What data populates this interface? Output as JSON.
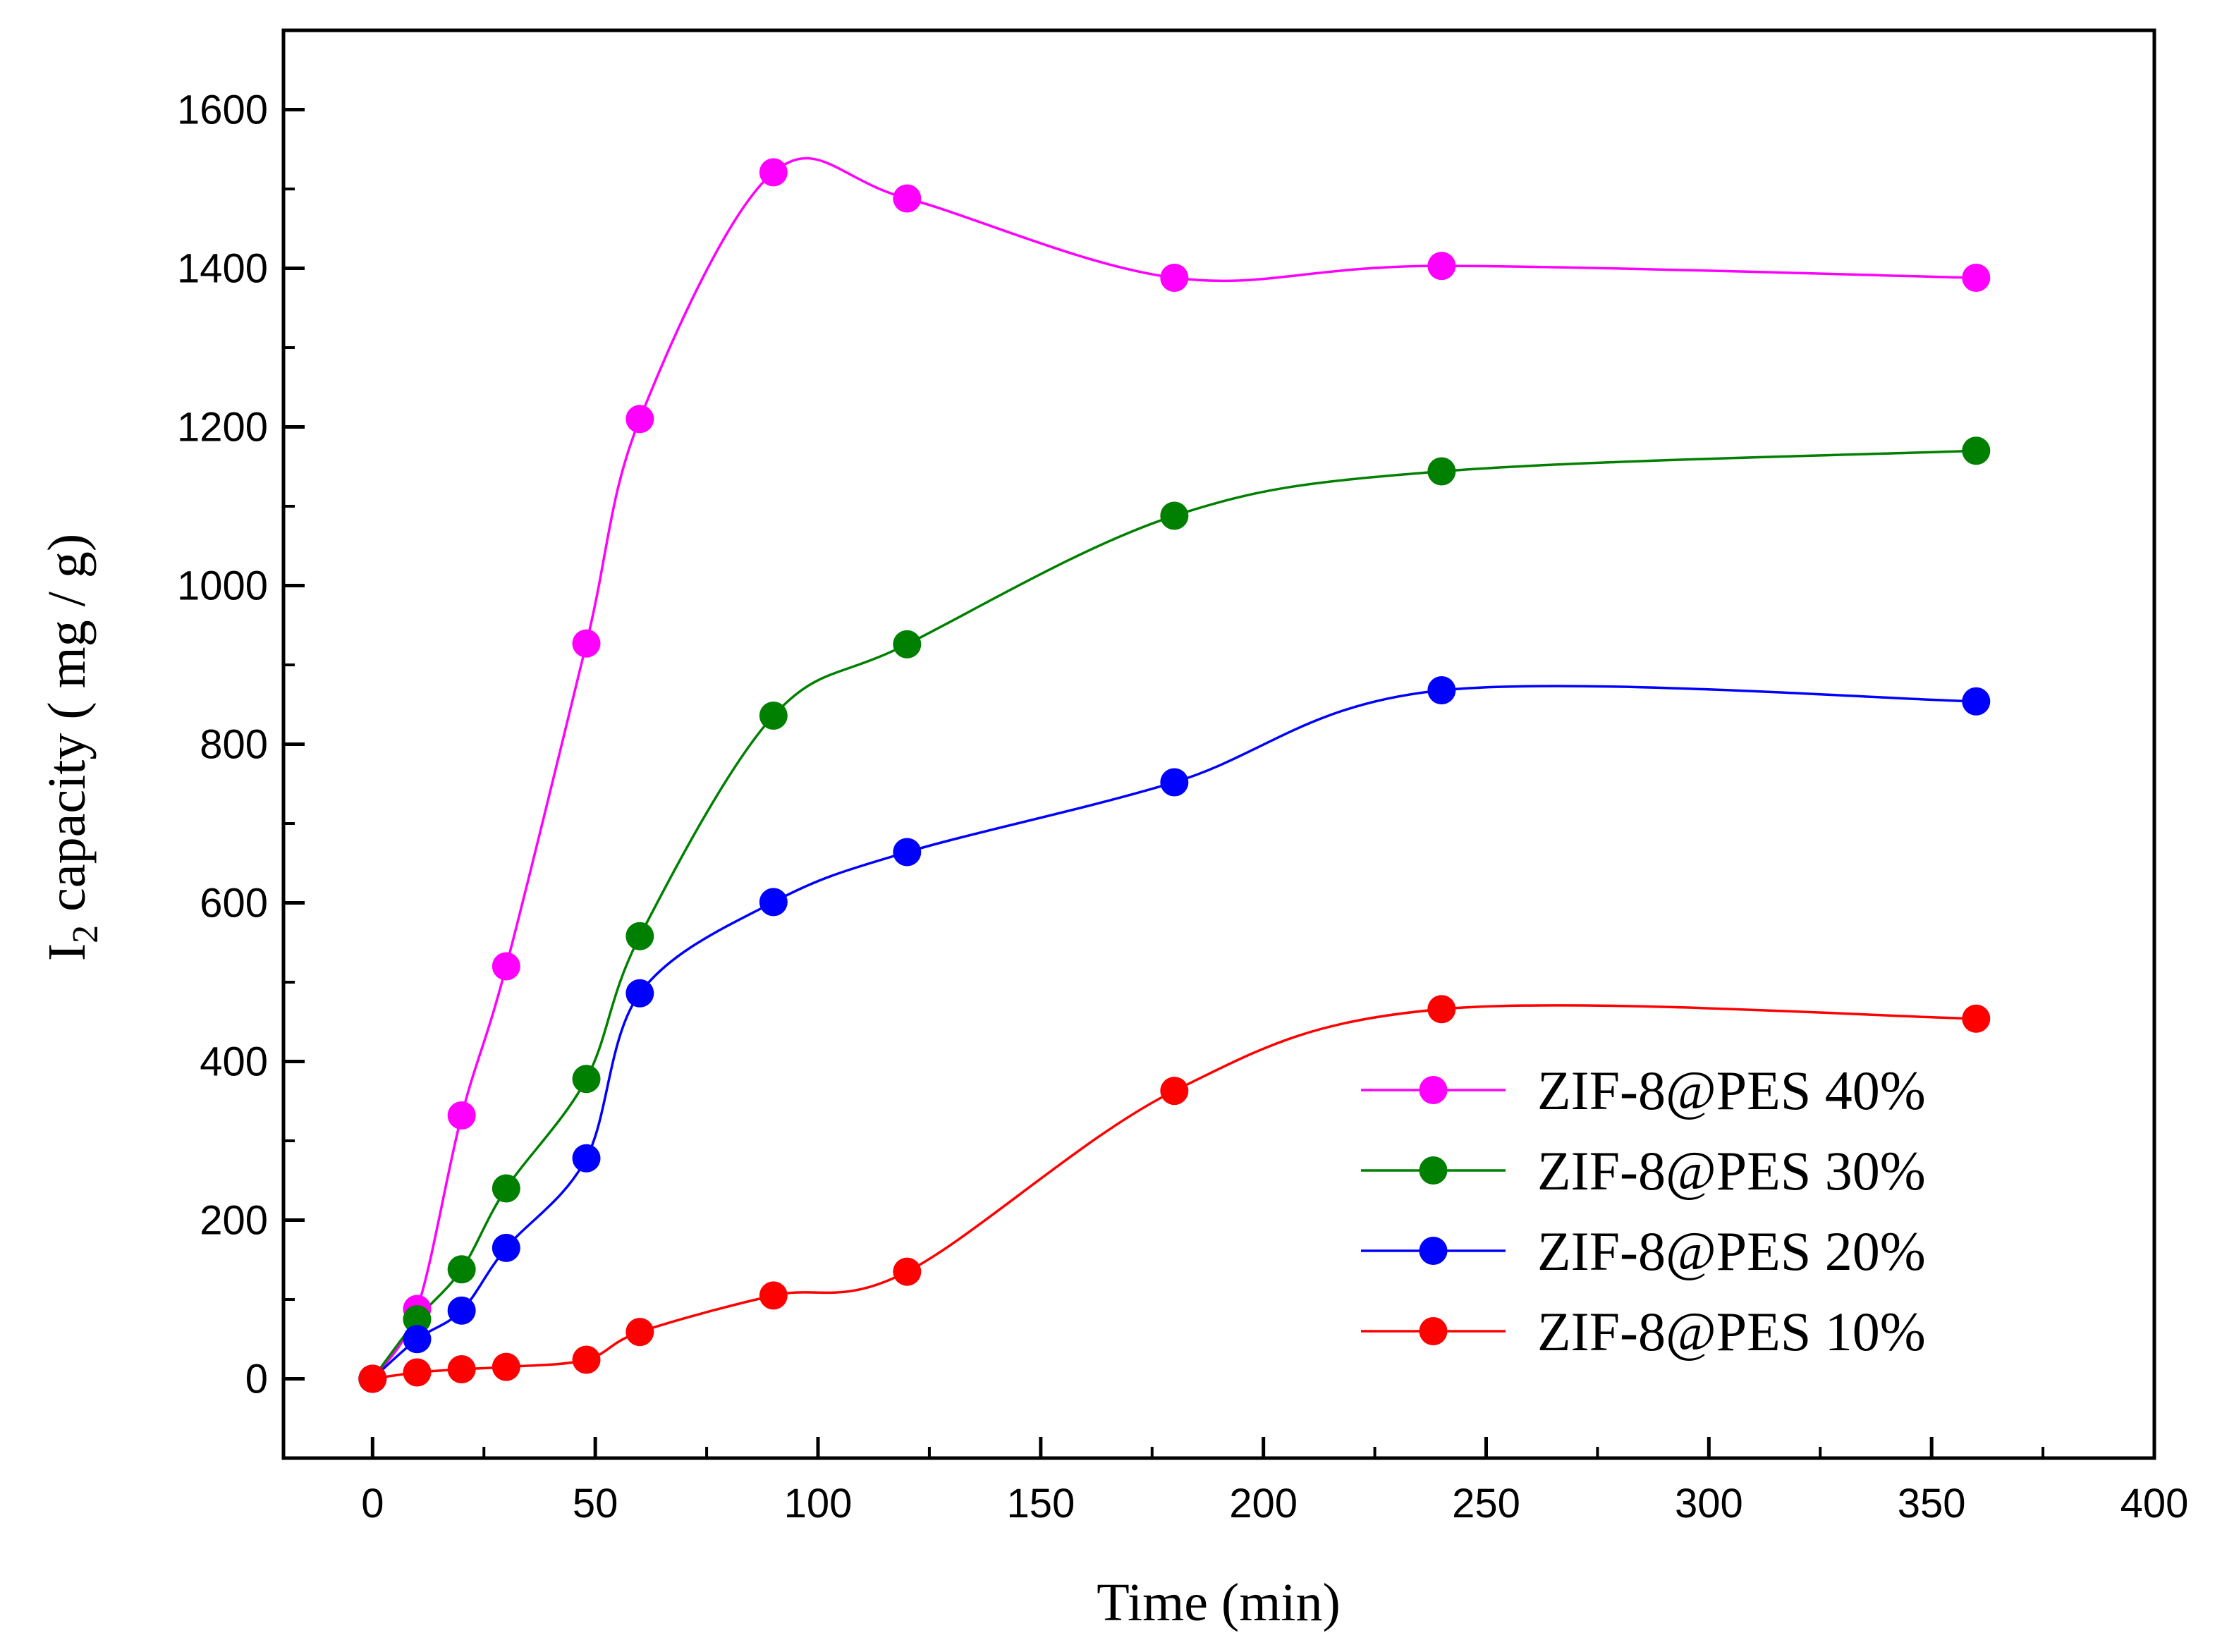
{
  "chart_data": {
    "type": "scatter",
    "title": "",
    "xlabel": "Time (min)",
    "ylabel": {
      "prefix": "I",
      "subscript": "2",
      "suffix": " capacity ( mg / g)"
    },
    "xlim": [
      -20,
      400
    ],
    "ylim": [
      -100,
      1700
    ],
    "xticks": [
      0,
      50,
      100,
      150,
      200,
      250,
      300,
      350,
      400
    ],
    "yticks": [
      0,
      200,
      400,
      600,
      800,
      1000,
      1200,
      1400,
      1600
    ],
    "legend_position": "lower-right",
    "x": [
      0,
      10,
      20,
      30,
      48,
      60,
      90,
      120,
      180,
      240,
      360
    ],
    "series": [
      {
        "name": "ZIF-8@PES 40%",
        "color": "#ff00ff",
        "values": [
          0,
          88,
          332,
          520,
          927,
          1210,
          1521,
          1488,
          1388,
          1403,
          1388
        ]
      },
      {
        "name": "ZIF-8@PES 30%",
        "color": "#008000",
        "values": [
          0,
          75,
          138,
          240,
          378,
          558,
          836,
          926,
          1088,
          1144,
          1170
        ]
      },
      {
        "name": "ZIF-8@PES 20%",
        "color": "#0000ff",
        "values": [
          0,
          50,
          86,
          165,
          278,
          486,
          601,
          664,
          752,
          868,
          854
        ]
      },
      {
        "name": "ZIF-8@PES 10%",
        "color": "#ff0000",
        "values": [
          0,
          8,
          12,
          15,
          24,
          59,
          105,
          135,
          363,
          466,
          454
        ]
      }
    ]
  }
}
